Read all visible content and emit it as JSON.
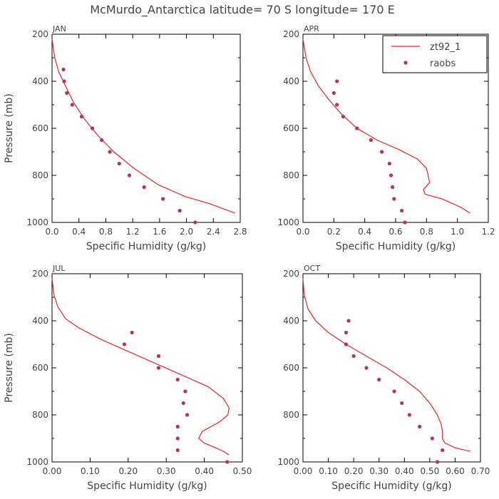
{
  "figure_title": "McMurdo_Antarctica  latitude= 70 S longitude= 170 E",
  "colors": {
    "model": "#e8262b",
    "obs": "#b5335f",
    "axis": "#000000",
    "text": "#444444"
  },
  "chart_data": [
    {
      "type": "line",
      "title": "JAN",
      "xlabel": "Specific Humidity (g/kg)",
      "ylabel": "Pressure (mb)",
      "xlim": [
        0,
        2.8
      ],
      "ylim": [
        200,
        1000
      ],
      "y_inverted": true,
      "x_ticks": [
        "0.0",
        "0.4",
        "0.8",
        "1.2",
        "1.6",
        "2.0",
        "2.4",
        "2.8"
      ],
      "y_ticks": [
        "200",
        "400",
        "600",
        "800",
        "1000"
      ],
      "series": [
        {
          "name": "zt92_1",
          "kind": "line",
          "x": [
            0.0,
            0.04,
            0.1,
            0.2,
            0.32,
            0.48,
            0.68,
            0.92,
            1.22,
            1.58,
            1.98,
            2.34,
            2.58,
            2.72
          ],
          "y": [
            220,
            300,
            360,
            420,
            490,
            560,
            630,
            700,
            770,
            840,
            890,
            920,
            945,
            960
          ]
        },
        {
          "name": "raobs",
          "kind": "points",
          "x": [
            0.17,
            0.18,
            0.22,
            0.3,
            0.44,
            0.6,
            0.74,
            0.86,
            1.0,
            1.15,
            1.37,
            1.65,
            1.9,
            2.13
          ],
          "y": [
            350,
            400,
            450,
            500,
            550,
            600,
            650,
            700,
            750,
            800,
            850,
            900,
            950,
            1000
          ]
        }
      ]
    },
    {
      "type": "line",
      "title": "APR",
      "xlabel": "Specific Humidity (g/kg)",
      "ylabel": "",
      "xlim": [
        0,
        1.2
      ],
      "ylim": [
        200,
        1000
      ],
      "y_inverted": true,
      "x_ticks": [
        "0.0",
        "0.2",
        "0.4",
        "0.6",
        "0.8",
        "1.0",
        "1.2"
      ],
      "y_ticks": [
        "200",
        "400",
        "600",
        "800",
        "1000"
      ],
      "legend": {
        "position": "top-right",
        "entries": [
          "zt92_1",
          "raobs"
        ]
      },
      "series": [
        {
          "name": "zt92_1",
          "kind": "line",
          "x": [
            0.0,
            0.02,
            0.05,
            0.1,
            0.17,
            0.25,
            0.35,
            0.48,
            0.62,
            0.74,
            0.8,
            0.82,
            0.78,
            0.79,
            0.9,
            1.02,
            1.08
          ],
          "y": [
            220,
            300,
            360,
            420,
            480,
            540,
            600,
            650,
            690,
            730,
            770,
            830,
            860,
            880,
            900,
            935,
            960
          ]
        },
        {
          "name": "raobs",
          "kind": "points",
          "x": [
            0.22,
            0.2,
            0.22,
            0.26,
            0.35,
            0.44,
            0.51,
            0.56,
            0.57,
            0.58,
            0.59,
            0.64,
            0.66
          ],
          "y": [
            400,
            450,
            500,
            550,
            600,
            650,
            700,
            750,
            800,
            850,
            900,
            950,
            1000
          ]
        }
      ]
    },
    {
      "type": "line",
      "title": "JUL",
      "xlabel": "Specific Humidity (g/kg)",
      "ylabel": "Pressure (mb)",
      "xlim": [
        0,
        0.5
      ],
      "ylim": [
        200,
        1000
      ],
      "y_inverted": true,
      "x_ticks": [
        "0.00",
        "0.10",
        "0.20",
        "0.30",
        "0.40",
        "0.50"
      ],
      "y_ticks": [
        "200",
        "400",
        "600",
        "800",
        "1000"
      ],
      "series": [
        {
          "name": "zt92_1",
          "kind": "line",
          "x": [
            0.0,
            0.005,
            0.015,
            0.035,
            0.07,
            0.13,
            0.2,
            0.27,
            0.34,
            0.41,
            0.45,
            0.465,
            0.462,
            0.44,
            0.395,
            0.385,
            0.4,
            0.43,
            0.45,
            0.465
          ],
          "y": [
            220,
            290,
            340,
            390,
            430,
            480,
            530,
            580,
            630,
            680,
            730,
            770,
            800,
            830,
            870,
            900,
            920,
            940,
            955,
            970
          ]
        },
        {
          "name": "raobs",
          "kind": "points",
          "x": [
            0.21,
            0.19,
            0.28,
            0.28,
            0.33,
            0.35,
            0.345,
            0.355,
            0.33,
            0.33,
            0.33,
            0.46
          ],
          "y": [
            450,
            500,
            550,
            600,
            650,
            700,
            750,
            800,
            850,
            900,
            950,
            1000
          ]
        }
      ]
    },
    {
      "type": "line",
      "title": "OCT",
      "xlabel": "Specific Humidity (g/kg)",
      "ylabel": "",
      "xlim": [
        0,
        0.7
      ],
      "ylim": [
        200,
        1000
      ],
      "y_inverted": true,
      "x_ticks": [
        "0.00",
        "0.10",
        "0.20",
        "0.30",
        "0.40",
        "0.50",
        "0.60",
        "0.70"
      ],
      "y_ticks": [
        "200",
        "400",
        "600",
        "800",
        "1000"
      ],
      "series": [
        {
          "name": "zt92_1",
          "kind": "line",
          "x": [
            0.0,
            0.005,
            0.02,
            0.05,
            0.1,
            0.17,
            0.25,
            0.33,
            0.4,
            0.46,
            0.5,
            0.53,
            0.545,
            0.55,
            0.55,
            0.56,
            0.6,
            0.66
          ],
          "y": [
            220,
            290,
            350,
            400,
            450,
            500,
            550,
            600,
            650,
            700,
            750,
            800,
            840,
            870,
            900,
            920,
            940,
            955
          ]
        },
        {
          "name": "raobs",
          "kind": "points",
          "x": [
            0.18,
            0.17,
            0.17,
            0.2,
            0.25,
            0.3,
            0.36,
            0.39,
            0.42,
            0.46,
            0.51,
            0.55,
            0.53
          ],
          "y": [
            400,
            450,
            500,
            550,
            600,
            650,
            700,
            750,
            800,
            850,
            900,
            950,
            1000
          ]
        }
      ]
    }
  ]
}
